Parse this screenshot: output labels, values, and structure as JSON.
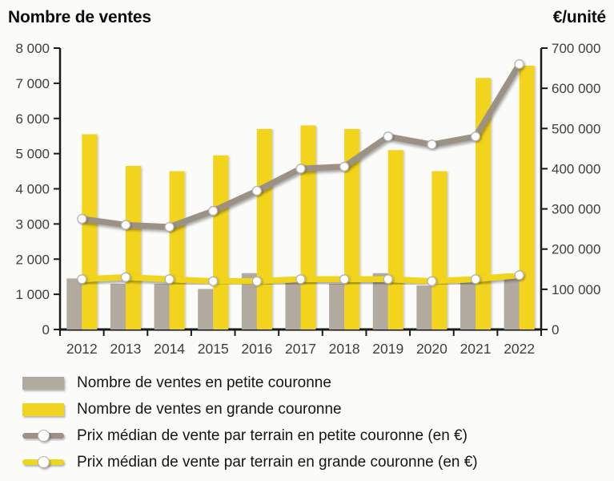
{
  "chart_data": {
    "type": "combo-bar-line",
    "categories": [
      "2012",
      "2013",
      "2014",
      "2015",
      "2016",
      "2017",
      "2018",
      "2019",
      "2020",
      "2021",
      "2022"
    ],
    "series": [
      {
        "name": "Nombre de ventes en petite couronne",
        "type": "bar",
        "axis": "left",
        "color": "#b2aa9e",
        "values": [
          1450,
          1300,
          1300,
          1150,
          1600,
          1400,
          1300,
          1600,
          1250,
          1350,
          1500
        ]
      },
      {
        "name": "Nombre de ventes en grande couronne",
        "type": "bar",
        "axis": "left",
        "color": "#f2d41e",
        "values": [
          5550,
          4650,
          4500,
          4950,
          5700,
          5800,
          5700,
          5100,
          4500,
          7150,
          7500
        ]
      },
      {
        "name": "Prix médian de vente par terrain en petite couronne (en €)",
        "type": "line",
        "axis": "right",
        "color": "#9b9185",
        "values": [
          275000,
          260000,
          255000,
          295000,
          345000,
          400000,
          405000,
          480000,
          460000,
          480000,
          660000
        ]
      },
      {
        "name": "Prix médian de vente par terrain en grande couronne (en €)",
        "type": "line",
        "axis": "right",
        "color": "#f0d51f",
        "values": [
          125000,
          130000,
          125000,
          120000,
          120000,
          125000,
          125000,
          125000,
          120000,
          125000,
          135000
        ]
      }
    ],
    "left_axis": {
      "title": "Nombre de ventes",
      "min": 0,
      "max": 8000,
      "tick_step": 1000,
      "tick_labels": [
        "0",
        "1 000",
        "2 000",
        "3 000",
        "4 000",
        "5 000",
        "6 000",
        "7 000",
        "8 000"
      ]
    },
    "right_axis": {
      "title": "€/unité",
      "min": 0,
      "max": 700000,
      "tick_step": 100000,
      "tick_labels": [
        "0",
        "100 000",
        "200 000",
        "300 000",
        "400 000",
        "500 000",
        "600 000",
        "700 000"
      ]
    },
    "grid": false,
    "legend_position": "bottom",
    "point_style": {
      "fill": "#ffffff",
      "stroke": "#b3b3b3"
    }
  }
}
